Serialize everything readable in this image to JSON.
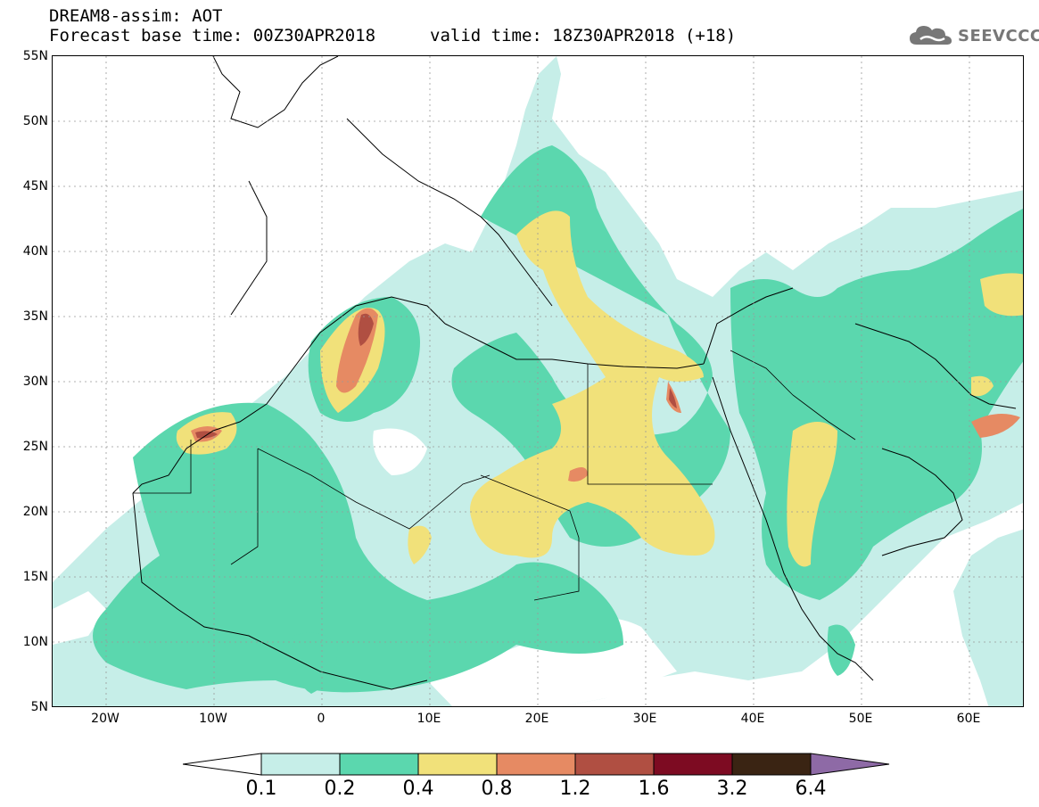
{
  "header": {
    "title": "DREAM8-assim: AOT",
    "base_time_label": "Forecast base time: 00Z30APR2018",
    "valid_time_label": "valid time: 18Z30APR2018 (+18)"
  },
  "logo": {
    "text": "SEEVCCC",
    "icon": "cloud-icon",
    "color": "#777777"
  },
  "map": {
    "variable": "AOT",
    "lat_labels": [
      "55N",
      "50N",
      "45N",
      "40N",
      "35N",
      "30N",
      "25N",
      "20N",
      "15N",
      "10N",
      "5N"
    ],
    "lon_labels": [
      "20W",
      "10W",
      "0",
      "10E",
      "20E",
      "30E",
      "40E",
      "50E",
      "60E"
    ],
    "lat_range": [
      5,
      55
    ],
    "lon_range": [
      -25,
      65
    ],
    "grid": "dashed gray"
  },
  "colorbar": {
    "labels": [
      "0.1",
      "0.2",
      "0.4",
      "0.8",
      "1.2",
      "1.6",
      "3.2",
      "6.4"
    ],
    "colors": {
      "below": "#ffffff",
      "c1": "#c6eee8",
      "c2": "#5bd7ae",
      "c3": "#f1e17a",
      "c4": "#e68a63",
      "c5": "#b04f42",
      "c6": "#7d0b22",
      "c7": "#3a2413",
      "above": "#8e6aa6"
    }
  }
}
